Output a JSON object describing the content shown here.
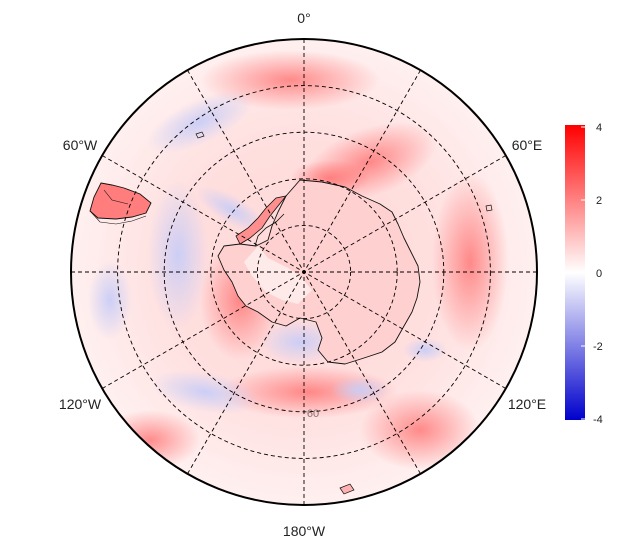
{
  "map": {
    "projection": "south-polar-stereographic",
    "longitude_labels": {
      "top": "0°",
      "upper_left": "60°W",
      "upper_right": "60°E",
      "lower_left": "120°W",
      "lower_right": "120°E",
      "bottom": "180°W"
    },
    "faint_label": "60",
    "meridian_step_deg": 30,
    "latitude_rings": 4,
    "palette": {
      "positive": "#ff0000",
      "zero": "#ffffff",
      "negative": "#0000cc"
    }
  },
  "colorbar": {
    "ticks": [
      "4",
      "2",
      "0",
      "-2",
      "-4"
    ],
    "min": -4,
    "max": 4
  }
}
